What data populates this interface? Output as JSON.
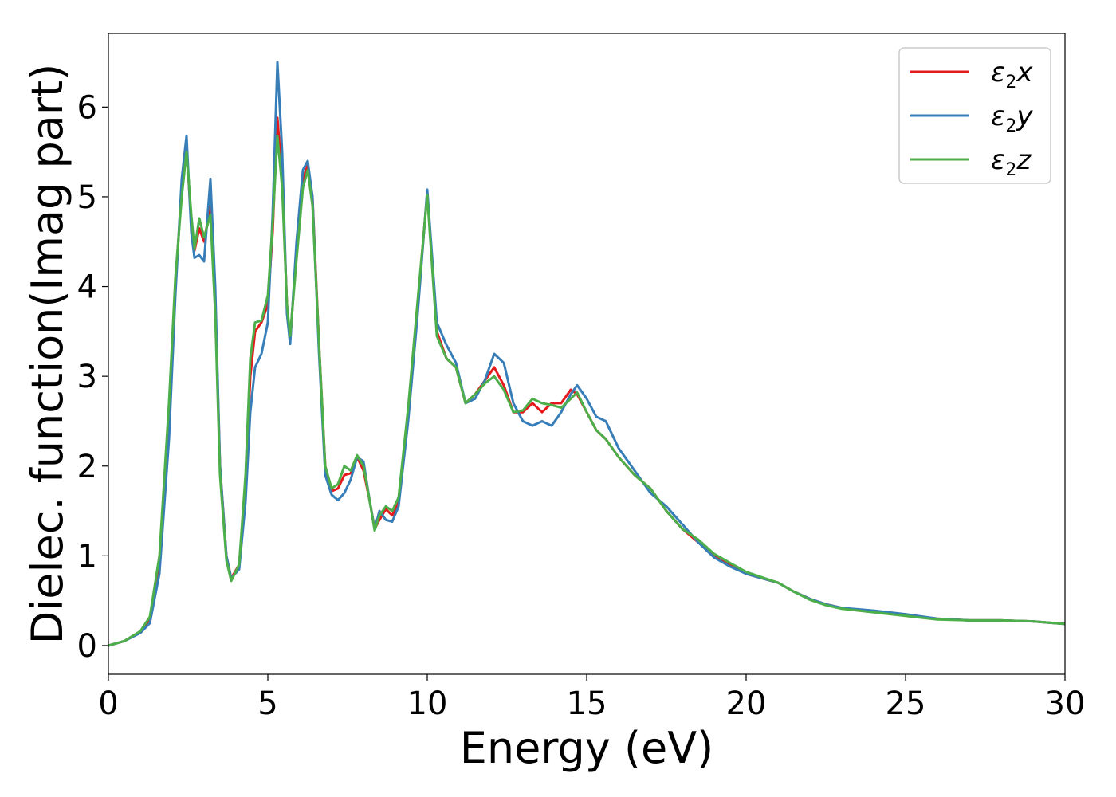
{
  "chart_data": {
    "type": "line",
    "xlabel": "Energy (eV)",
    "ylabel": "Dielec. function(Imag part)",
    "xlim": [
      0,
      30
    ],
    "ylim": [
      -0.32,
      6.82
    ],
    "xticks": [
      "0",
      "5",
      "10",
      "15",
      "20",
      "25",
      "30"
    ],
    "yticks": [
      "0",
      "1",
      "2",
      "3",
      "4",
      "5",
      "6"
    ],
    "grid": false,
    "legend_position": "top-right",
    "series": [
      {
        "name": "ε₂x",
        "legend": {
          "base": "ε",
          "sub": "2",
          "suffix": "x"
        },
        "color": "#e41a1c",
        "x": [
          0,
          0.5,
          1.0,
          1.3,
          1.6,
          1.9,
          2.1,
          2.3,
          2.45,
          2.6,
          2.7,
          2.85,
          3.0,
          3.2,
          3.35,
          3.5,
          3.7,
          3.85,
          4.1,
          4.3,
          4.45,
          4.6,
          4.8,
          5.0,
          5.15,
          5.3,
          5.45,
          5.6,
          5.7,
          5.9,
          6.1,
          6.25,
          6.4,
          6.6,
          6.8,
          7.0,
          7.2,
          7.4,
          7.6,
          7.8,
          8.0,
          8.2,
          8.35,
          8.5,
          8.7,
          8.9,
          9.1,
          9.4,
          9.7,
          10.0,
          10.3,
          10.6,
          10.9,
          11.2,
          11.5,
          11.8,
          12.1,
          12.4,
          12.7,
          13.0,
          13.3,
          13.6,
          13.9,
          14.2,
          14.5,
          14.7,
          15.0,
          15.3,
          15.6,
          16.0,
          16.5,
          17.0,
          17.5,
          18.0,
          18.5,
          19.0,
          19.5,
          20.0,
          20.5,
          21.0,
          21.5,
          22.0,
          22.5,
          23.0,
          24.0,
          25.0,
          26.0,
          27.0,
          28.0,
          29.0,
          30.0
        ],
        "values": [
          0.0,
          0.05,
          0.15,
          0.3,
          0.9,
          2.5,
          4.0,
          5.1,
          5.55,
          4.7,
          4.4,
          4.65,
          4.5,
          4.9,
          3.8,
          2.0,
          1.0,
          0.75,
          0.9,
          1.8,
          3.0,
          3.5,
          3.6,
          3.8,
          4.6,
          5.88,
          5.2,
          3.8,
          3.4,
          4.4,
          5.2,
          5.35,
          5.0,
          3.4,
          2.0,
          1.72,
          1.75,
          1.9,
          1.92,
          2.1,
          1.95,
          1.6,
          1.3,
          1.4,
          1.52,
          1.45,
          1.6,
          2.6,
          3.8,
          5.05,
          3.5,
          3.2,
          3.1,
          2.7,
          2.8,
          2.95,
          3.1,
          2.9,
          2.6,
          2.6,
          2.7,
          2.6,
          2.7,
          2.7,
          2.85,
          2.8,
          2.6,
          2.4,
          2.3,
          2.1,
          1.9,
          1.75,
          1.5,
          1.3,
          1.15,
          1.0,
          0.9,
          0.8,
          0.75,
          0.7,
          0.6,
          0.52,
          0.46,
          0.42,
          0.38,
          0.34,
          0.3,
          0.28,
          0.28,
          0.27,
          0.24
        ]
      },
      {
        "name": "ε₂y",
        "legend": {
          "base": "ε",
          "sub": "2",
          "suffix": "y"
        },
        "color": "#377eb8",
        "x": [
          0,
          0.5,
          1.0,
          1.3,
          1.6,
          1.9,
          2.1,
          2.3,
          2.45,
          2.6,
          2.7,
          2.85,
          3.0,
          3.2,
          3.35,
          3.5,
          3.7,
          3.85,
          4.1,
          4.3,
          4.45,
          4.6,
          4.8,
          5.0,
          5.15,
          5.3,
          5.45,
          5.6,
          5.7,
          5.9,
          6.1,
          6.25,
          6.4,
          6.6,
          6.8,
          7.0,
          7.2,
          7.4,
          7.6,
          7.8,
          8.0,
          8.2,
          8.35,
          8.5,
          8.7,
          8.9,
          9.1,
          9.4,
          9.7,
          10.0,
          10.3,
          10.6,
          10.9,
          11.2,
          11.5,
          11.8,
          12.1,
          12.4,
          12.7,
          13.0,
          13.3,
          13.6,
          13.9,
          14.2,
          14.5,
          14.7,
          15.0,
          15.3,
          15.6,
          16.0,
          16.5,
          17.0,
          17.5,
          18.0,
          18.5,
          19.0,
          19.5,
          20.0,
          20.5,
          21.0,
          21.5,
          22.0,
          22.5,
          23.0,
          24.0,
          25.0,
          26.0,
          27.0,
          28.0,
          29.0,
          30.0
        ],
        "values": [
          0.0,
          0.05,
          0.14,
          0.25,
          0.8,
          2.3,
          3.9,
          5.2,
          5.68,
          4.6,
          4.32,
          4.35,
          4.28,
          5.2,
          4.0,
          2.0,
          1.0,
          0.75,
          0.85,
          1.6,
          2.6,
          3.1,
          3.25,
          3.6,
          4.8,
          6.5,
          5.5,
          3.7,
          3.36,
          4.5,
          5.3,
          5.4,
          5.0,
          3.3,
          1.9,
          1.68,
          1.62,
          1.7,
          1.85,
          2.1,
          2.05,
          1.6,
          1.3,
          1.5,
          1.4,
          1.38,
          1.55,
          2.5,
          3.7,
          5.08,
          3.6,
          3.35,
          3.15,
          2.7,
          2.75,
          2.95,
          3.25,
          3.15,
          2.7,
          2.5,
          2.45,
          2.5,
          2.45,
          2.6,
          2.8,
          2.9,
          2.75,
          2.55,
          2.5,
          2.2,
          1.95,
          1.7,
          1.55,
          1.35,
          1.15,
          0.98,
          0.88,
          0.8,
          0.75,
          0.7,
          0.6,
          0.52,
          0.46,
          0.42,
          0.39,
          0.35,
          0.3,
          0.28,
          0.28,
          0.27,
          0.24
        ]
      },
      {
        "name": "ε₂z",
        "legend": {
          "base": "ε",
          "sub": "2",
          "suffix": "z"
        },
        "color": "#4daf4a",
        "x": [
          0,
          0.5,
          1.0,
          1.3,
          1.6,
          1.9,
          2.1,
          2.3,
          2.45,
          2.6,
          2.7,
          2.85,
          3.0,
          3.2,
          3.35,
          3.5,
          3.7,
          3.85,
          4.1,
          4.3,
          4.45,
          4.6,
          4.8,
          5.0,
          5.15,
          5.3,
          5.45,
          5.6,
          5.7,
          5.9,
          6.1,
          6.25,
          6.4,
          6.6,
          6.8,
          7.0,
          7.2,
          7.4,
          7.6,
          7.8,
          8.0,
          8.2,
          8.35,
          8.5,
          8.7,
          8.9,
          9.1,
          9.4,
          9.7,
          10.0,
          10.3,
          10.6,
          10.9,
          11.2,
          11.5,
          11.8,
          12.1,
          12.4,
          12.7,
          13.0,
          13.3,
          13.6,
          13.9,
          14.2,
          14.5,
          14.7,
          15.0,
          15.3,
          15.6,
          16.0,
          16.5,
          17.0,
          17.5,
          18.0,
          18.5,
          19.0,
          19.5,
          20.0,
          20.5,
          21.0,
          21.5,
          22.0,
          22.5,
          23.0,
          24.0,
          25.0,
          26.0,
          27.0,
          28.0,
          29.0,
          30.0
        ],
        "values": [
          0.0,
          0.05,
          0.16,
          0.32,
          1.0,
          2.7,
          4.1,
          5.0,
          5.5,
          4.8,
          4.42,
          4.76,
          4.55,
          4.8,
          3.7,
          1.9,
          0.95,
          0.72,
          0.9,
          1.9,
          3.2,
          3.6,
          3.62,
          3.9,
          4.7,
          5.68,
          5.1,
          3.8,
          3.45,
          4.3,
          5.1,
          5.3,
          4.9,
          3.4,
          2.0,
          1.75,
          1.8,
          2.0,
          1.95,
          2.12,
          2.0,
          1.6,
          1.28,
          1.45,
          1.55,
          1.5,
          1.65,
          2.65,
          3.85,
          5.02,
          3.45,
          3.2,
          3.1,
          2.7,
          2.8,
          2.92,
          3.0,
          2.85,
          2.6,
          2.62,
          2.75,
          2.7,
          2.68,
          2.65,
          2.75,
          2.82,
          2.6,
          2.4,
          2.3,
          2.1,
          1.9,
          1.75,
          1.5,
          1.3,
          1.18,
          1.02,
          0.92,
          0.82,
          0.76,
          0.7,
          0.6,
          0.51,
          0.45,
          0.41,
          0.37,
          0.33,
          0.29,
          0.28,
          0.28,
          0.27,
          0.24
        ]
      }
    ]
  }
}
